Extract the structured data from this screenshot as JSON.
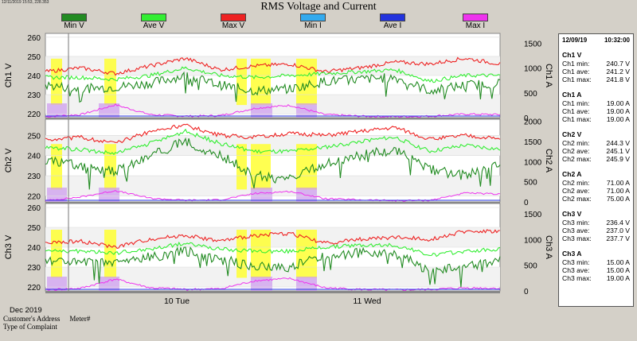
{
  "header": {
    "timestamp": "12/11/2019 15:53, 228.353",
    "title": "RMS Voltage and Current"
  },
  "legend": [
    {
      "label": "Min V",
      "color": "#228b22"
    },
    {
      "label": "Ave V",
      "color": "#33ee33"
    },
    {
      "label": "Max V",
      "color": "#ee2222"
    },
    {
      "label": "Min I",
      "color": "#33aaee"
    },
    {
      "label": "Ave I",
      "color": "#2233dd"
    },
    {
      "label": "Max I",
      "color": "#ee33ee"
    }
  ],
  "chart_data": {
    "type": "line",
    "x_period": "Dec 2019",
    "x_tick_labels": [
      "10 Tue",
      "11 Wed"
    ],
    "panels": [
      {
        "name": "Ch1",
        "ylabel_left": "Ch1 V",
        "ylabel_right": "Ch1 A",
        "v_ticks": [
          "260",
          "250",
          "240",
          "230",
          "220"
        ],
        "ylim_v": [
          218,
          262
        ],
        "a_ticks": [
          "1500",
          "1000",
          "500",
          "0"
        ],
        "ylim_a": [
          0,
          1700
        ],
        "series": [
          {
            "name": "Max V",
            "values": [
              242,
              244,
              241,
              245,
              249,
              243,
              245,
              246,
              242,
              244,
              247,
              246,
              249,
              246
            ]
          },
          {
            "name": "Ave V",
            "values": [
              239,
              239,
              238,
              240,
              244,
              240,
              239,
              240,
              241,
              242,
              243,
              237,
              240,
              240
            ]
          },
          {
            "name": "Min V",
            "values": [
              235,
              233,
              234,
              236,
              240,
              235,
              232,
              233,
              237,
              238,
              239,
              232,
              235,
              236
            ]
          },
          {
            "name": "Max I",
            "values": [
              20,
              60,
              260,
              60,
              30,
              40,
              190,
              250,
              60,
              30,
              20,
              30,
              70,
              60
            ]
          }
        ]
      },
      {
        "name": "Ch2",
        "ylabel_left": "Ch2 V",
        "ylabel_right": "Ch2 A",
        "v_ticks": [
          "250",
          "240",
          "230",
          "220"
        ],
        "ylim_v": [
          217,
          258
        ],
        "a_ticks": [
          "2000",
          "1500",
          "1000",
          "500",
          "0"
        ],
        "ylim_a": [
          0,
          2050
        ],
        "series": [
          {
            "name": "Max V",
            "values": [
              248,
              249,
              246,
              252,
              255,
              250,
              249,
              251,
              250,
              252,
              254,
              248,
              250,
              248
            ]
          },
          {
            "name": "Ave V",
            "values": [
              244,
              243,
              241,
              246,
              252,
              246,
              242,
              242,
              244,
              247,
              249,
              242,
              245,
              243
            ]
          },
          {
            "name": "Min V",
            "values": [
              238,
              235,
              232,
              240,
              247,
              240,
              230,
              228,
              236,
              240,
              243,
              233,
              230,
              236
            ]
          },
          {
            "name": "Max I",
            "values": [
              30,
              120,
              280,
              90,
              40,
              50,
              210,
              260,
              80,
              50,
              30,
              40,
              220,
              190
            ]
          }
        ]
      },
      {
        "name": "Ch3",
        "ylabel_left": "Ch3 V",
        "ylabel_right": "Ch3 A",
        "v_ticks": [
          "260",
          "250",
          "240",
          "230",
          "220"
        ],
        "ylim_v": [
          218,
          262
        ],
        "a_ticks": [
          "1500",
          "1000",
          "500",
          "0"
        ],
        "ylim_a": [
          0,
          1700
        ],
        "series": [
          {
            "name": "Max V",
            "values": [
              242,
              243,
              240,
              244,
              246,
              243,
              246,
              247,
              242,
              244,
              245,
              244,
              248,
              248
            ]
          },
          {
            "name": "Ave V",
            "values": [
              238,
              238,
              237,
              239,
              242,
              239,
              238,
              238,
              240,
              241,
              241,
              236,
              238,
              239
            ]
          },
          {
            "name": "Min V",
            "values": [
              234,
              232,
              232,
              235,
              238,
              234,
              230,
              230,
              236,
              237,
              237,
              228,
              230,
              233
            ]
          },
          {
            "name": "Max I",
            "values": [
              20,
              50,
              230,
              60,
              30,
              40,
              200,
              240,
              60,
              30,
              20,
              30,
              60,
              50
            ]
          }
        ]
      }
    ]
  },
  "sidebar": {
    "date": "12/09/19",
    "time": "10:32:00",
    "groups": [
      {
        "title": "Ch1 V",
        "rows": [
          {
            "label": "Ch1 min:",
            "value": "240.7 V"
          },
          {
            "label": "Ch1 ave:",
            "value": "241.2 V"
          },
          {
            "label": "Ch1 max:",
            "value": "241.8 V"
          }
        ]
      },
      {
        "title": "Ch1 A",
        "rows": [
          {
            "label": "Ch1 min:",
            "value": "19.00 A"
          },
          {
            "label": "Ch1 ave:",
            "value": "19.00 A"
          },
          {
            "label": "Ch1 max:",
            "value": "19.00 A"
          }
        ]
      },
      {
        "title": "Ch2 V",
        "rows": [
          {
            "label": "Ch2 min:",
            "value": "244.3 V"
          },
          {
            "label": "Ch2 ave:",
            "value": "245.1 V"
          },
          {
            "label": "Ch2 max:",
            "value": "245.9 V"
          }
        ]
      },
      {
        "title": "Ch2 A",
        "rows": [
          {
            "label": "Ch2 min:",
            "value": "71.00 A"
          },
          {
            "label": "Ch2 ave:",
            "value": "71.00 A"
          },
          {
            "label": "Ch2 max:",
            "value": "75.00 A"
          }
        ]
      },
      {
        "title": "Ch3 V",
        "rows": [
          {
            "label": "Ch3 min:",
            "value": "236.4 V"
          },
          {
            "label": "Ch3 ave:",
            "value": "237.0 V"
          },
          {
            "label": "Ch3 max:",
            "value": "237.7 V"
          }
        ]
      },
      {
        "title": "Ch3 A",
        "rows": [
          {
            "label": "Ch3 min:",
            "value": "15.00 A"
          },
          {
            "label": "Ch3 ave:",
            "value": "15.00 A"
          },
          {
            "label": "Ch3 max:",
            "value": "19.00 A"
          }
        ]
      }
    ]
  },
  "footer": {
    "date_label": "Dec 2019",
    "address_label": "Customer's Address",
    "meter_label": "Meter#",
    "complaint_label": "Type of Complaint"
  }
}
